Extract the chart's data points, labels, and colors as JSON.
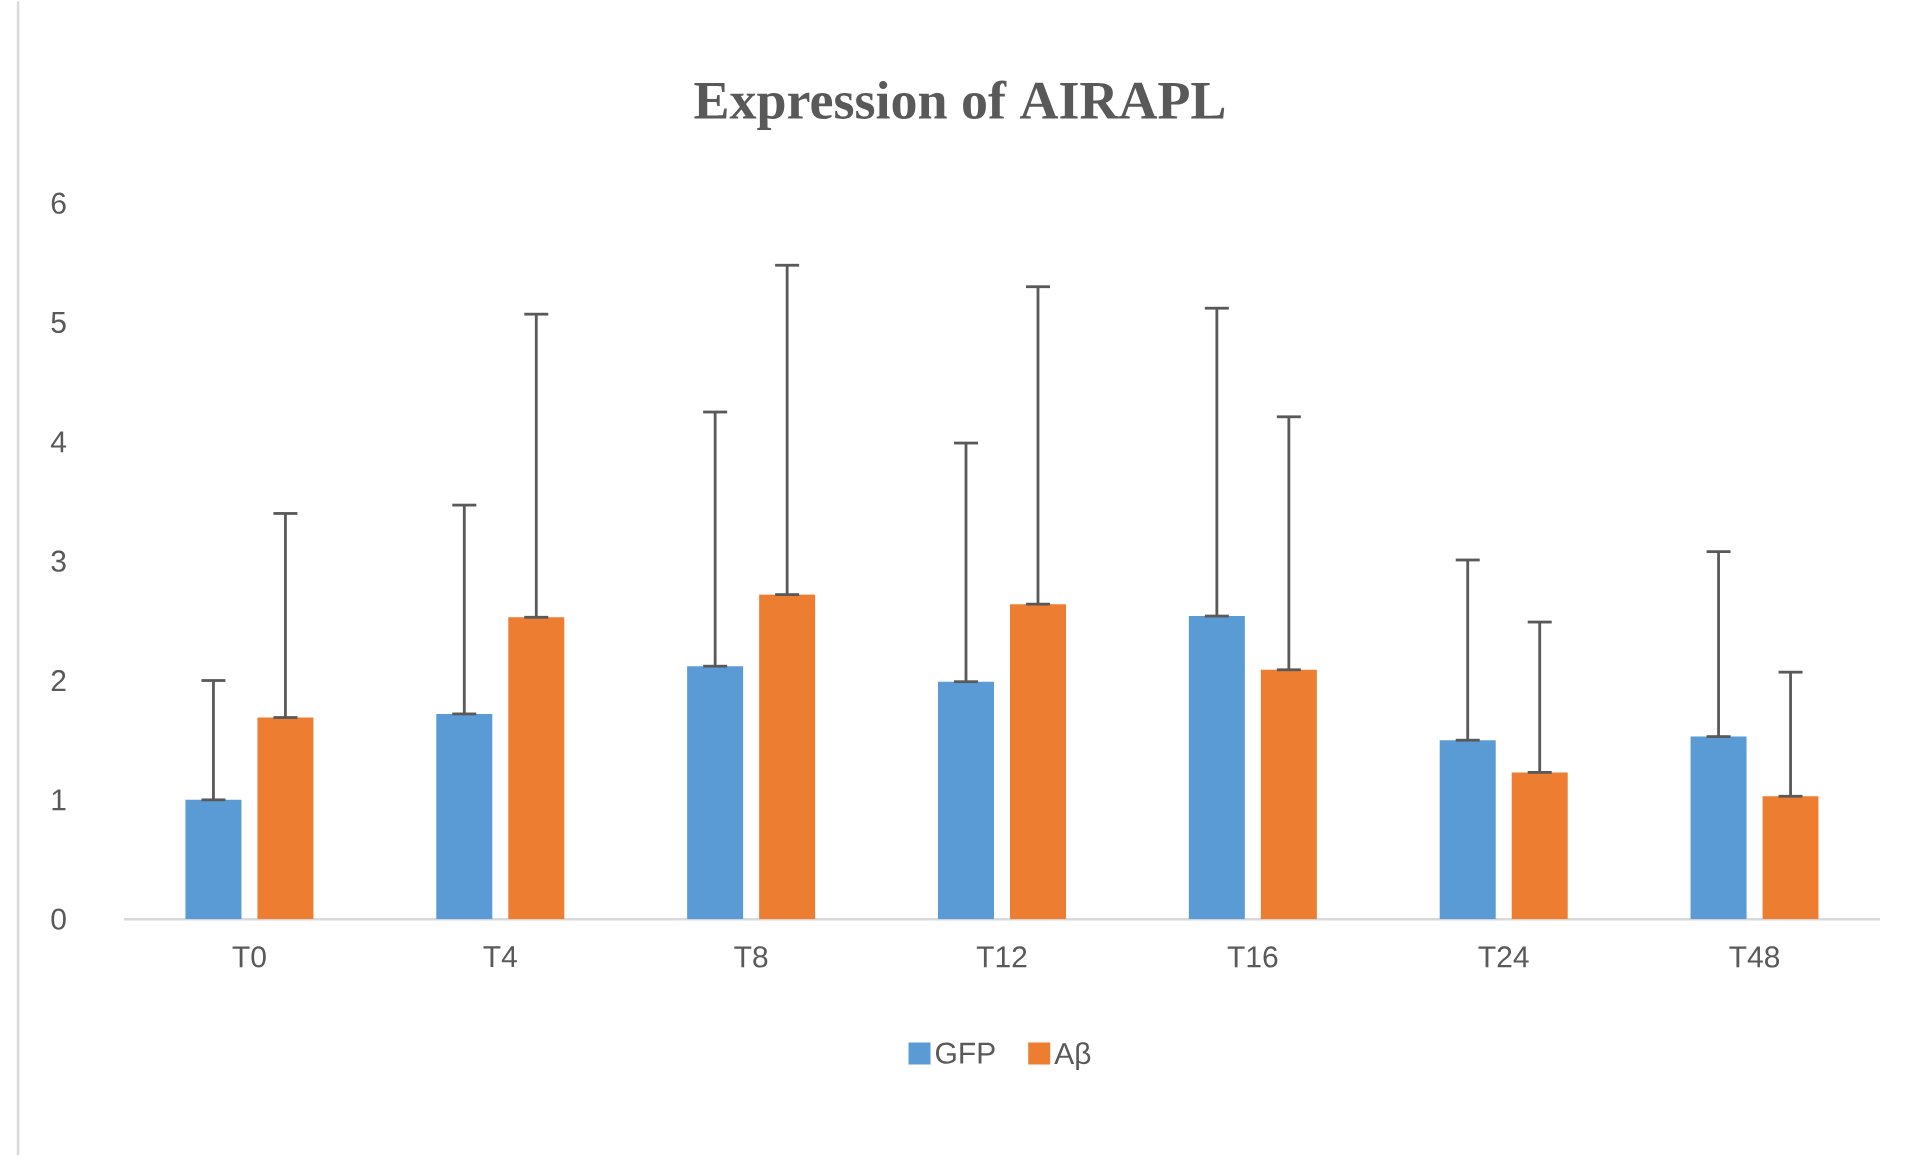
{
  "chart_data": {
    "type": "bar",
    "title": "Expression of AIRAPL",
    "categories": [
      "T0",
      "T4",
      "T8",
      "T12",
      "T16",
      "T24",
      "T48"
    ],
    "series": [
      {
        "name": "GFP",
        "color": "#5b9bd5",
        "values": [
          1.0,
          1.72,
          2.12,
          1.99,
          2.54,
          1.5,
          1.53
        ],
        "errors": [
          [
            1.0,
            2.0
          ],
          [
            1.72,
            3.47
          ],
          [
            2.12,
            4.25
          ],
          [
            1.99,
            3.99
          ],
          [
            2.54,
            5.12
          ],
          [
            1.5,
            3.01
          ],
          [
            1.53,
            3.08
          ]
        ]
      },
      {
        "name": "Aβ",
        "color": "#ed7d31",
        "values": [
          1.69,
          2.53,
          2.72,
          2.64,
          2.09,
          1.23,
          1.03
        ],
        "errors": [
          [
            1.69,
            3.4
          ],
          [
            2.53,
            5.07
          ],
          [
            2.72,
            5.48
          ],
          [
            2.64,
            5.3
          ],
          [
            2.09,
            4.21
          ],
          [
            1.23,
            2.49
          ],
          [
            1.03,
            2.07
          ]
        ]
      }
    ],
    "ylim": [
      0,
      6
    ],
    "yticks": [
      0,
      1,
      2,
      3,
      4,
      5,
      6
    ],
    "grid": false,
    "legend": "bottom"
  }
}
